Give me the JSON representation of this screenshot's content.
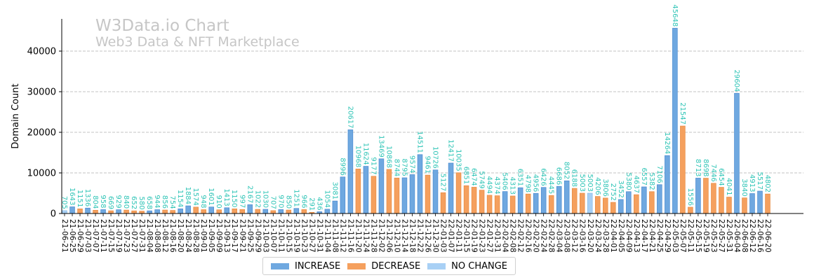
{
  "chart_data": {
    "type": "bar",
    "title": "W3Data.io Chart",
    "subtitle": "Web3 Data & NFT Marketplace",
    "xlabel": "",
    "ylabel": "Domain Count",
    "ylim": [
      0,
      48000
    ],
    "yticks": [
      0,
      10000,
      20000,
      30000,
      40000
    ],
    "grid": true,
    "legend_position": "bottom-center",
    "colors": {
      "increase": "#6fa8e0",
      "decrease": "#f5a05e",
      "no_change": "#a8d0f5",
      "label": "#2ec4b6",
      "grid": "#b0b0b0"
    },
    "legend": [
      {
        "key": "increase",
        "label": "INCREASE"
      },
      {
        "key": "decrease",
        "label": "DECREASE"
      },
      {
        "key": "no_change",
        "label": "NO CHANGE"
      }
    ],
    "categories": [
      "21-06-21",
      "21-06-25",
      "21-06-29",
      "21-07-03",
      "21-07-07",
      "21-07-11",
      "21-07-15",
      "21-07-19",
      "21-07-23",
      "21-07-27",
      "21-07-31",
      "21-08-04",
      "21-08-08",
      "21-08-12",
      "21-08-16",
      "21-08-20",
      "21-08-24",
      "21-08-28",
      "21-09-01",
      "21-09-05",
      "21-09-09",
      "21-09-13",
      "21-09-17",
      "21-09-21",
      "21-09-25",
      "21-09-29",
      "21-10-03",
      "21-10-07",
      "21-10-11",
      "21-10-15",
      "21-10-19",
      "21-10-23",
      "21-10-27",
      "21-10-31",
      "21-11-04",
      "21-11-08",
      "21-11-12",
      "21-11-16",
      "21-11-20",
      "21-11-24",
      "21-11-28",
      "21-12-02",
      "21-12-06",
      "21-12-10",
      "21-12-14",
      "21-12-18",
      "21-12-22",
      "21-12-26",
      "21-12-30",
      "22-01-03",
      "22-01-07",
      "22-01-11",
      "22-01-15",
      "22-01-19",
      "22-01-23",
      "22-01-27",
      "22-01-31",
      "22-02-04",
      "22-02-08",
      "22-02-12",
      "22-02-16",
      "22-02-20",
      "22-02-24",
      "22-02-28",
      "22-03-04",
      "22-03-08",
      "22-03-12",
      "22-03-16",
      "22-03-20",
      "22-03-24",
      "22-03-28",
      "22-04-01",
      "22-04-05",
      "22-04-09",
      "22-04-13",
      "22-04-17",
      "22-04-21",
      "22-04-25",
      "22-04-29",
      "22-05-03",
      "22-05-07",
      "22-05-11",
      "22-05-15",
      "22-05-19",
      "22-05-23",
      "22-05-27",
      "22-05-31",
      "22-06-04",
      "22-06-08",
      "22-06-12",
      "22-06-16",
      "22-06-20"
    ],
    "values": [
      705,
      1643,
      1151,
      1336,
      804,
      958,
      669,
      929,
      840,
      652,
      580,
      658,
      944,
      856,
      754,
      1154,
      1884,
      1574,
      948,
      1601,
      910,
      1413,
      1150,
      997,
      2167,
      1022,
      1030,
      707,
      970,
      850,
      1251,
      966,
      291,
      436,
      1054,
      3081,
      8996,
      20617,
      10968,
      11624,
      9177,
      13469,
      10868,
      8744,
      8795,
      9574,
      14511,
      9461,
      10726,
      5127,
      12417,
      10035,
      6851,
      6474,
      5749,
      4494,
      4374,
      5406,
      4313,
      6351,
      4798,
      4956,
      6426,
      4445,
      6686,
      8052,
      6188,
      5003,
      5003,
      4206,
      3806,
      2752,
      3452,
      5380,
      4637,
      6557,
      5382,
      7106,
      14264,
      45648,
      21547,
      1556,
      8713,
      8698,
      7446,
      6454,
      4041,
      29604,
      3840,
      4913,
      5517,
      4802
    ],
    "change_type": [
      "no_change",
      "increase",
      "decrease",
      "increase",
      "decrease",
      "increase",
      "decrease",
      "increase",
      "decrease",
      "decrease",
      "decrease",
      "increase",
      "increase",
      "decrease",
      "decrease",
      "increase",
      "increase",
      "decrease",
      "decrease",
      "increase",
      "decrease",
      "increase",
      "decrease",
      "decrease",
      "increase",
      "decrease",
      "increase",
      "decrease",
      "increase",
      "decrease",
      "increase",
      "decrease",
      "decrease",
      "increase",
      "increase",
      "increase",
      "increase",
      "increase",
      "decrease",
      "increase",
      "decrease",
      "increase",
      "decrease",
      "decrease",
      "increase",
      "increase",
      "increase",
      "decrease",
      "increase",
      "decrease",
      "increase",
      "decrease",
      "decrease",
      "decrease",
      "decrease",
      "decrease",
      "decrease",
      "increase",
      "decrease",
      "increase",
      "decrease",
      "increase",
      "increase",
      "decrease",
      "increase",
      "increase",
      "decrease",
      "decrease",
      "no_change",
      "decrease",
      "decrease",
      "decrease",
      "increase",
      "increase",
      "decrease",
      "increase",
      "decrease",
      "increase",
      "increase",
      "increase",
      "decrease",
      "decrease",
      "increase",
      "decrease",
      "decrease",
      "decrease",
      "decrease",
      "increase",
      "decrease",
      "increase",
      "increase",
      "decrease"
    ]
  }
}
